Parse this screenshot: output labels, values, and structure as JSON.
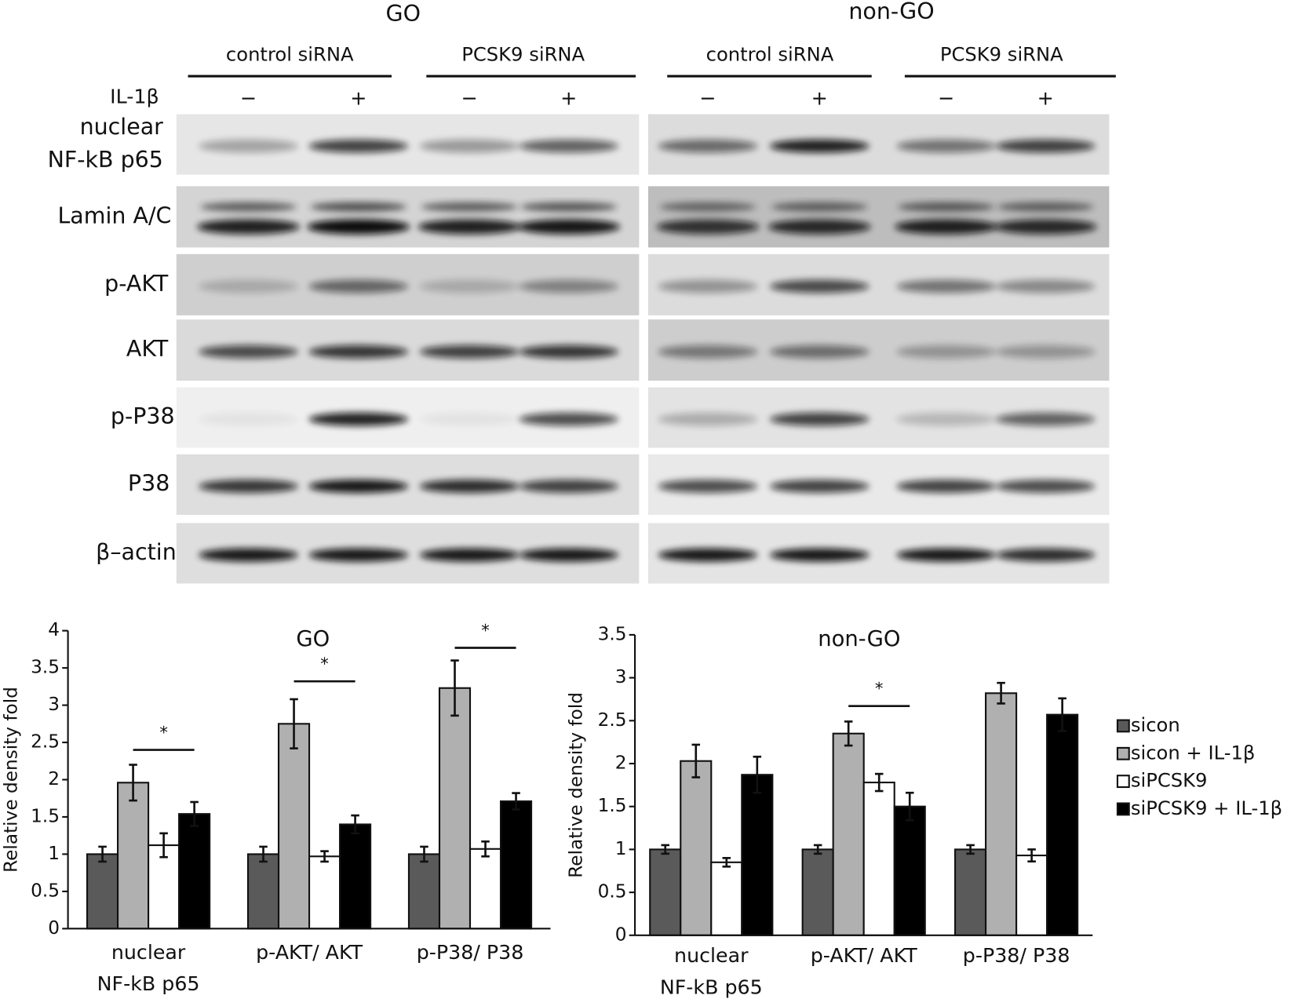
{
  "blots": {
    "panels": [
      {
        "title": "GO",
        "groups": [
          "control siRNA",
          "PCSK9 siRNA"
        ]
      },
      {
        "title": "non-GO",
        "groups": [
          "control siRNA",
          "PCSK9 siRNA"
        ]
      }
    ],
    "treatment_label": "IL-1β",
    "treatment_signs": [
      "−",
      "+",
      "−",
      "+"
    ],
    "rows": [
      [
        "nuclear",
        "NF-kB p65"
      ],
      [
        "Lamin A/C"
      ],
      [
        "p-AKT"
      ],
      [
        "AKT"
      ],
      [
        "p-P38"
      ],
      [
        "P38"
      ],
      [
        "β–actin"
      ]
    ]
  },
  "chart_data": [
    {
      "type": "bar",
      "title": "GO",
      "y_label": "Relative density fold",
      "categories": [
        [
          "nuclear",
          "NF-kB p65"
        ],
        [
          "p-AKT/ AKT"
        ],
        [
          "p-P38/ P38"
        ]
      ],
      "series": [
        {
          "color": "#5a5a5a",
          "values": [
            1,
            1,
            1
          ],
          "errors": [
            0.1,
            0.1,
            0.1
          ]
        },
        {
          "color": "#b0b0b0",
          "values": [
            1.96,
            2.75,
            3.23
          ],
          "errors": [
            0.24,
            0.33,
            0.37
          ]
        },
        {
          "color": "#ffffff",
          "values": [
            1.12,
            0.97,
            1.07
          ],
          "errors": [
            0.16,
            0.07,
            0.1
          ]
        },
        {
          "color": "#000000",
          "values": [
            1.54,
            1.4,
            1.71
          ],
          "errors": [
            0.16,
            0.12,
            0.11
          ]
        }
      ],
      "significance": [
        {
          "label": "*",
          "y": 2.4
        },
        {
          "label": "*",
          "y": 3.32
        },
        {
          "label": "*",
          "y": 3.77
        }
      ],
      "ylim": [
        0,
        4
      ],
      "yticks": [
        0,
        0.5,
        1,
        1.5,
        2,
        2.5,
        3,
        3.5,
        4
      ],
      "grid": false
    },
    {
      "type": "bar",
      "title": "non-GO",
      "y_label": "Relative density fold",
      "categories": [
        [
          "nuclear",
          "NF-kB p65"
        ],
        [
          "p-AKT/ AKT"
        ],
        [
          "p-P38/ P38"
        ]
      ],
      "series": [
        {
          "name": "sicon",
          "color": "#5a5a5a",
          "values": [
            1,
            1,
            1
          ],
          "errors": [
            0.05,
            0.05,
            0.05
          ]
        },
        {
          "name": "sicon + IL-1β",
          "color": "#b0b0b0",
          "values": [
            2.03,
            2.35,
            2.82
          ],
          "errors": [
            0.19,
            0.14,
            0.12
          ]
        },
        {
          "name": "siPCSK9",
          "color": "#ffffff",
          "values": [
            0.85,
            1.78,
            0.93
          ],
          "errors": [
            0.05,
            0.1,
            0.07
          ]
        },
        {
          "name": "siPCSK9 + IL-1β",
          "color": "#000000",
          "values": [
            1.87,
            1.5,
            2.57
          ],
          "errors": [
            0.21,
            0.16,
            0.19
          ]
        }
      ],
      "significance": [
        null,
        {
          "label": "*",
          "y": 2.67
        },
        null
      ],
      "ylim": [
        0,
        3.5
      ],
      "yticks": [
        0,
        0.5,
        1,
        1.5,
        2,
        2.5,
        3,
        3.5
      ],
      "grid": false,
      "legend": "right"
    }
  ]
}
